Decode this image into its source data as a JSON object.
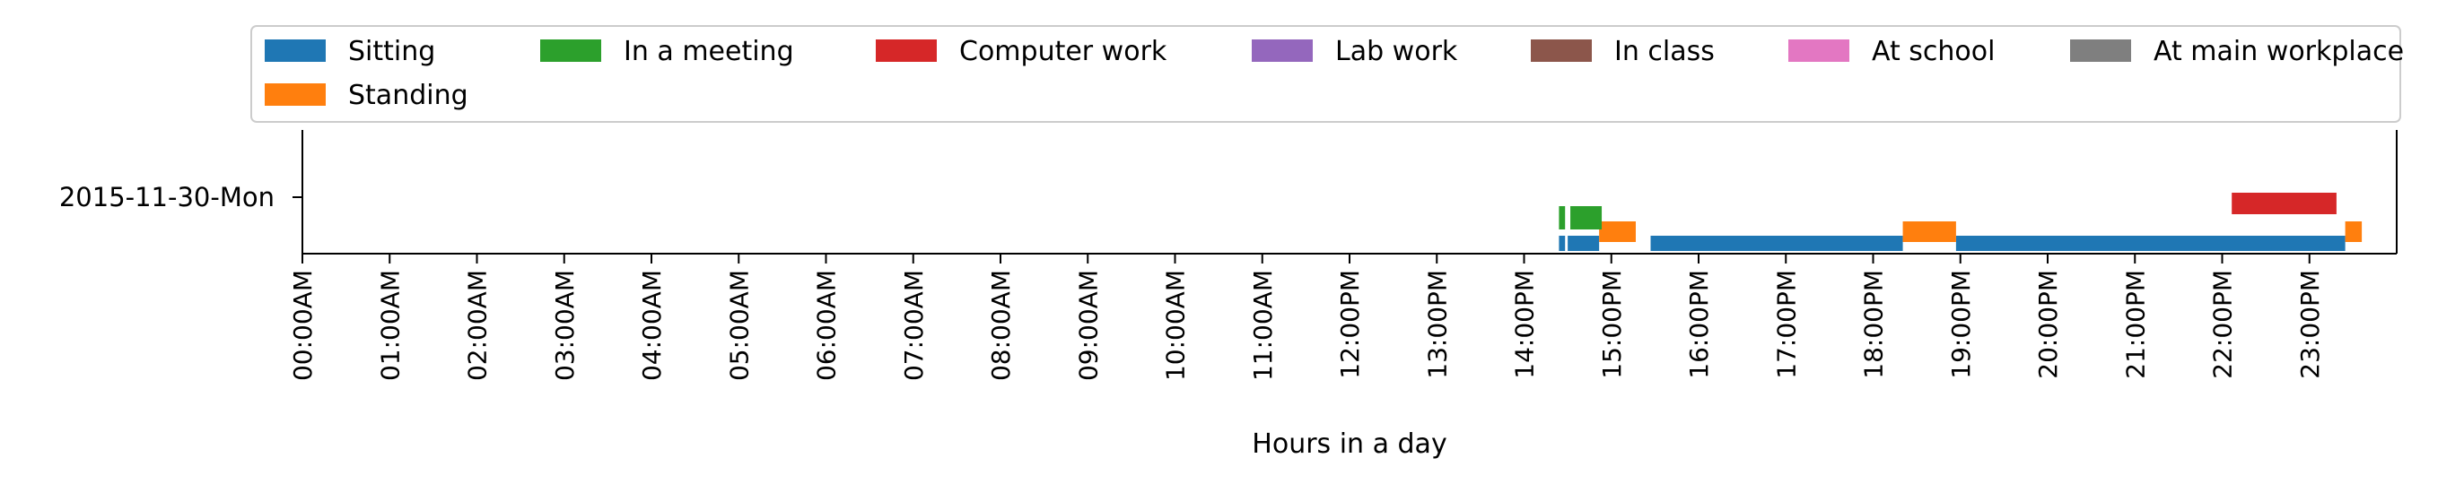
{
  "chart_data": {
    "type": "timeline",
    "xlabel": "Hours in a day",
    "xlim": [
      0,
      24
    ],
    "grid": false,
    "legend_placement": "top",
    "x_tick_labels": [
      "00:00AM",
      "01:00AM",
      "02:00AM",
      "03:00AM",
      "04:00AM",
      "05:00AM",
      "06:00AM",
      "07:00AM",
      "08:00AM",
      "09:00AM",
      "10:00AM",
      "11:00AM",
      "12:00PM",
      "13:00PM",
      "14:00PM",
      "15:00PM",
      "16:00PM",
      "17:00PM",
      "18:00PM",
      "19:00PM",
      "20:00PM",
      "21:00PM",
      "22:00PM",
      "23:00PM"
    ],
    "row_label": "2015-11-30-Mon",
    "legend": [
      {
        "name": "Sitting",
        "color": "#1f77b4"
      },
      {
        "name": "In a meeting",
        "color": "#2ca02c"
      },
      {
        "name": "Computer work",
        "color": "#d62728"
      },
      {
        "name": "Lab work",
        "color": "#9467bd"
      },
      {
        "name": "In class",
        "color": "#8c564b"
      },
      {
        "name": "At school",
        "color": "#e377c2"
      },
      {
        "name": "At main workplace",
        "color": "#7f7f7f"
      },
      {
        "name": "Standing",
        "color": "#ff7f0e"
      }
    ],
    "series": [
      {
        "name": "Sitting",
        "intervals": [
          [
            14.4,
            14.47
          ],
          [
            14.5,
            14.86
          ],
          [
            15.45,
            18.34
          ],
          [
            18.95,
            23.41
          ]
        ]
      },
      {
        "name": "Standing",
        "intervals": [
          [
            14.86,
            15.28
          ],
          [
            18.34,
            18.95
          ],
          [
            23.41,
            23.6
          ]
        ]
      },
      {
        "name": "In a meeting",
        "intervals": [
          [
            14.4,
            14.47
          ],
          [
            14.53,
            14.89
          ]
        ]
      },
      {
        "name": "Computer work",
        "intervals": [
          [
            22.11,
            23.31
          ]
        ]
      },
      {
        "name": "Lab work",
        "intervals": []
      },
      {
        "name": "In class",
        "intervals": []
      },
      {
        "name": "At school",
        "intervals": []
      },
      {
        "name": "At main workplace",
        "intervals": []
      }
    ]
  }
}
